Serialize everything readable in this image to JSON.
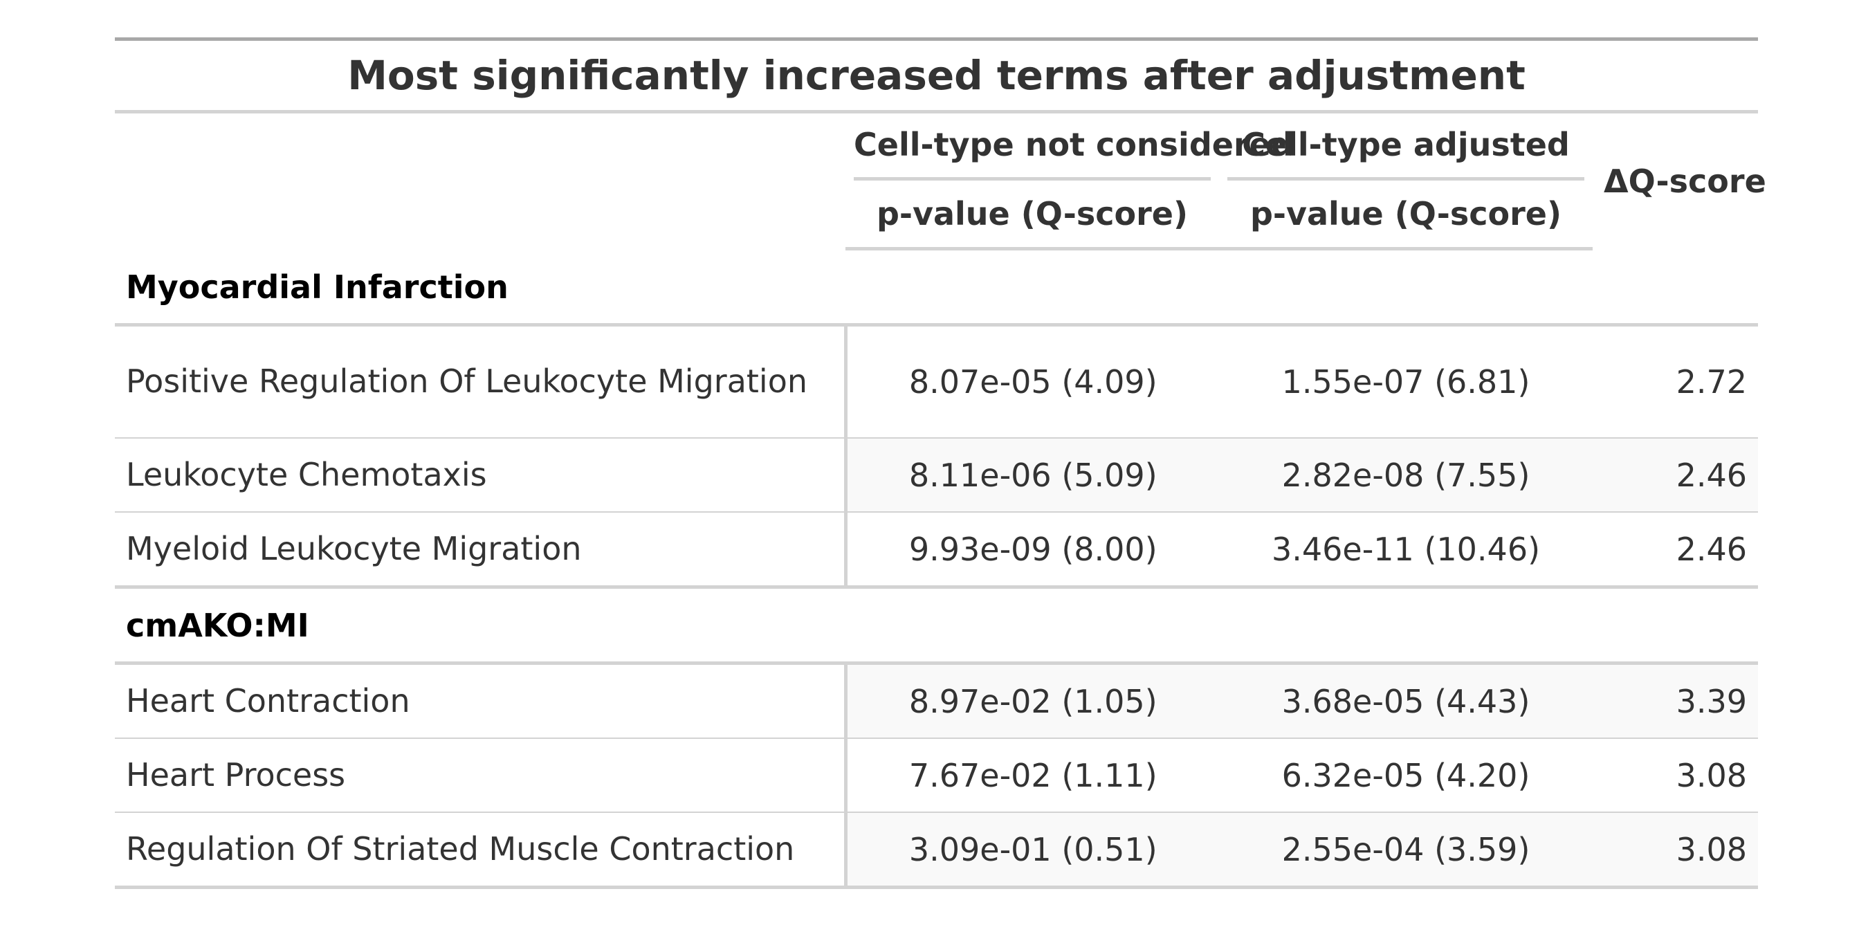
{
  "chart_data": {
    "type": "table",
    "title": "Most significantly increased terms after adjustment",
    "spanners": [
      "Cell-type not considered",
      "Cell-type adjusted"
    ],
    "columns": [
      "",
      "p-value (Q-score)",
      "p-value (Q-score)",
      "ΔQ-score"
    ],
    "groups": [
      {
        "name": "Myocardial Infarction",
        "rows": [
          {
            "term": "Positive Regulation Of Leukocyte Migration",
            "not_considered": "8.07e-05 (4.09)",
            "adjusted": "1.55e-07 (6.81)",
            "delta": "2.72"
          },
          {
            "term": "Leukocyte Chemotaxis",
            "not_considered": "8.11e-06 (5.09)",
            "adjusted": "2.82e-08 (7.55)",
            "delta": "2.46"
          },
          {
            "term": "Myeloid Leukocyte Migration",
            "not_considered": "9.93e-09 (8.00)",
            "adjusted": "3.46e-11 (10.46)",
            "delta": "2.46"
          }
        ]
      },
      {
        "name": "cmAKO:MI",
        "rows": [
          {
            "term": "Heart Contraction",
            "not_considered": "8.97e-02 (1.05)",
            "adjusted": "3.68e-05 (4.43)",
            "delta": "3.39"
          },
          {
            "term": "Heart Process",
            "not_considered": "7.67e-02 (1.11)",
            "adjusted": "6.32e-05 (4.20)",
            "delta": "3.08"
          },
          {
            "term": "Regulation Of Striated Muscle Contraction",
            "not_considered": "3.09e-01 (0.51)",
            "adjusted": "2.55e-04 (3.59)",
            "delta": "3.08"
          }
        ]
      }
    ]
  }
}
